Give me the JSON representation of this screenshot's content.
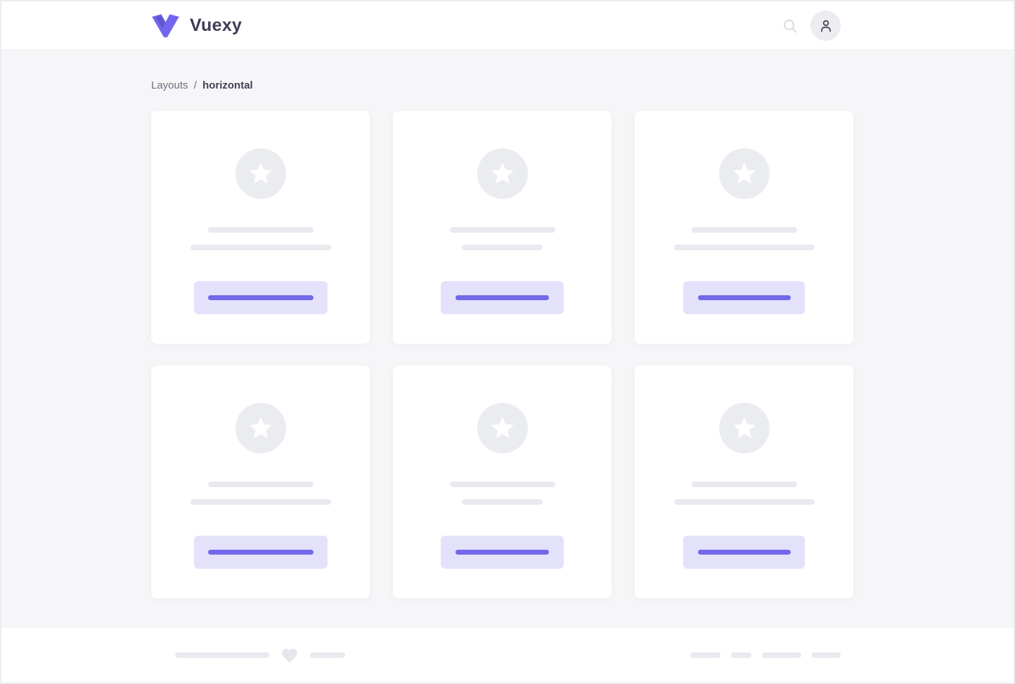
{
  "brand": {
    "name": "Vuexy"
  },
  "header": {
    "icons": [
      {
        "name": "search-icon"
      },
      {
        "name": "user-avatar-icon"
      }
    ]
  },
  "breadcrumb": {
    "section": "Layouts",
    "separator": "/",
    "current": "horizontal"
  },
  "content": {
    "cards": [
      {
        "icon": "star-icon",
        "line1": 150,
        "line2": 200,
        "button": 190,
        "pill": 150
      },
      {
        "icon": "star-icon",
        "line1": 150,
        "line2": 115,
        "button": 175,
        "pill": 133
      },
      {
        "icon": "star-icon",
        "line1": 150,
        "line2": 200,
        "button": 173,
        "pill": 132
      },
      {
        "icon": "star-icon",
        "line1": 150,
        "line2": 200,
        "button": 190,
        "pill": 150
      },
      {
        "icon": "star-icon",
        "line1": 150,
        "line2": 115,
        "button": 175,
        "pill": 133
      },
      {
        "icon": "star-icon",
        "line1": 150,
        "line2": 200,
        "button": 173,
        "pill": 132
      }
    ]
  },
  "footer": {
    "left_lines": [
      134,
      50
    ],
    "heart_icon": "heart-icon",
    "right_pills": [
      43,
      29,
      56,
      41
    ]
  },
  "colors": {
    "primary": "#7367f0",
    "primary_shade": "#554ad0",
    "button_bg": "#e4e2fb",
    "button_pill": "#7268ea",
    "skeleton_gray": "#e9eaef",
    "circle_gray": "#ebecf0",
    "content_bg": "#f6f6f8",
    "header_bg": "#ffffff",
    "brand_text": "#413c57"
  }
}
